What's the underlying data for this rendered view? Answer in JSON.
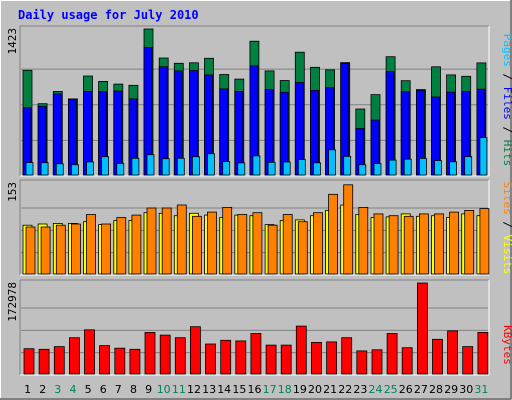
{
  "chart_data": [
    {
      "type": "bar",
      "title": "Daily usage for July 2010",
      "ymax_label": "1423",
      "legend": [
        "Pages",
        "Files",
        "Hits"
      ],
      "categories": [
        "1",
        "2",
        "3",
        "4",
        "5",
        "6",
        "7",
        "8",
        "9",
        "10",
        "11",
        "12",
        "13",
        "14",
        "15",
        "16",
        "17",
        "18",
        "19",
        "20",
        "21",
        "22",
        "23",
        "24",
        "25",
        "26",
        "27",
        "28",
        "29",
        "30",
        "31"
      ],
      "ylim": [
        0,
        1423
      ],
      "series": [
        {
          "name": "Hits",
          "values": [
            1020,
            695,
            815,
            742,
            965,
            912,
            886,
            874,
            1423,
            1140,
            1089,
            1094,
            1137,
            980,
            935,
            1304,
            1015,
            921,
            1197,
            1050,
            1024,
            1096,
            643,
            784,
            1153,
            919,
            832,
            1055,
            976,
            962,
            1093
          ]
        },
        {
          "name": "Files",
          "values": [
            655,
            670,
            790,
            736,
            815,
            812,
            819,
            742,
            1243,
            1057,
            1015,
            1019,
            976,
            839,
            814,
            1063,
            832,
            806,
            902,
            825,
            850,
            1089,
            454,
            535,
            1007,
            811,
            826,
            760,
            808,
            813,
            836
          ]
        },
        {
          "name": "Pages",
          "values": [
            121,
            120,
            109,
            100,
            128,
            178,
            114,
            163,
            198,
            159,
            163,
            178,
            208,
            132,
            118,
            186,
            124,
            127,
            151,
            119,
            246,
            181,
            100,
            111,
            145,
            154,
            162,
            140,
            129,
            179,
            365
          ]
        }
      ]
    },
    {
      "type": "bar",
      "ymax_label": "153",
      "legend": [
        "Sites",
        "Visits"
      ],
      "categories": [
        "1",
        "2",
        "3",
        "4",
        "5",
        "6",
        "7",
        "8",
        "9",
        "10",
        "11",
        "12",
        "13",
        "14",
        "15",
        "16",
        "17",
        "18",
        "19",
        "20",
        "21",
        "22",
        "23",
        "24",
        "25",
        "26",
        "27",
        "28",
        "29",
        "30",
        "31"
      ],
      "ylim": [
        0,
        153
      ],
      "series": [
        {
          "name": "Visits",
          "values": [
            82,
            84,
            85,
            85,
            88,
            83,
            90,
            90,
            103,
            102,
            98,
            102,
            99,
            95,
            99,
            98,
            83,
            90,
            91,
            98,
            107,
            116,
            100,
            95,
            96,
            101,
            97,
            98,
            95,
            101,
            98
          ]
        },
        {
          "name": "Sites",
          "values": [
            79,
            79,
            82,
            84,
            100,
            84,
            95,
            99,
            111,
            111,
            116,
            97,
            104,
            112,
            100,
            103,
            82,
            100,
            88,
            103,
            134,
            150,
            112,
            101,
            98,
            97,
            101,
            101,
            104,
            107,
            110
          ]
        }
      ]
    },
    {
      "type": "bar",
      "ymax_label": "172978",
      "legend": [
        "KBytes"
      ],
      "categories": [
        "1",
        "2",
        "3",
        "4",
        "5",
        "6",
        "7",
        "8",
        "9",
        "10",
        "11",
        "12",
        "13",
        "14",
        "15",
        "16",
        "17",
        "18",
        "19",
        "20",
        "21",
        "22",
        "23",
        "24",
        "25",
        "26",
        "27",
        "28",
        "29",
        "30",
        "31"
      ],
      "ylim": [
        0,
        172978
      ],
      "series": [
        {
          "name": "KBytes",
          "values": [
            48000,
            47000,
            52000,
            69000,
            84000,
            54000,
            49000,
            47000,
            79000,
            74000,
            69000,
            90000,
            57000,
            64000,
            63000,
            77000,
            55000,
            55000,
            91000,
            60000,
            61000,
            69000,
            44000,
            46000,
            77000,
            50000,
            172978,
            66000,
            82000,
            52000,
            79000
          ]
        }
      ]
    }
  ],
  "colors": {
    "background": "#c0c0c0",
    "title": "#0000ff",
    "hits": "#008040",
    "files": "#0000ff",
    "pages": "#00c0ff",
    "visits": "#ffff00",
    "sites": "#ff8000",
    "kbytes": "#ff0000",
    "day_weekday": "#000000",
    "day_weekend": "#00805c"
  },
  "weekend_days": [
    "3",
    "4",
    "10",
    "11",
    "17",
    "18",
    "24",
    "25",
    "31"
  ]
}
